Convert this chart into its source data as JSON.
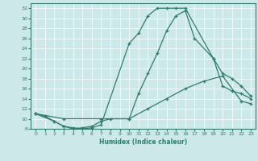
{
  "xlabel": "Humidex (Indice chaleur)",
  "xlim": [
    -0.5,
    23.5
  ],
  "ylim": [
    8,
    33
  ],
  "yticks": [
    8,
    10,
    12,
    14,
    16,
    18,
    20,
    22,
    24,
    26,
    28,
    30,
    32
  ],
  "xticks": [
    0,
    1,
    2,
    3,
    4,
    5,
    6,
    7,
    8,
    9,
    10,
    11,
    12,
    13,
    14,
    15,
    16,
    17,
    18,
    19,
    20,
    21,
    22,
    23
  ],
  "background_color": "#cce8e8",
  "line_color": "#2e7d6e",
  "lines": [
    {
      "x": [
        0,
        1,
        2,
        3,
        4,
        5,
        6,
        7,
        10,
        11,
        12,
        13,
        14,
        15,
        16,
        19,
        20,
        21,
        22,
        23
      ],
      "y": [
        11,
        10.5,
        9.5,
        8.5,
        8.2,
        8.0,
        8.2,
        8.8,
        25,
        27,
        30.5,
        32,
        32,
        32,
        32,
        22,
        16.5,
        15.5,
        15,
        14
      ]
    },
    {
      "x": [
        0,
        2,
        3,
        4,
        5,
        6,
        7,
        8,
        10,
        11,
        12,
        13,
        14,
        15,
        16,
        17,
        19,
        20,
        21,
        22,
        23
      ],
      "y": [
        11,
        9.5,
        8.5,
        8.0,
        8.2,
        8.5,
        9.5,
        10,
        10,
        15,
        19,
        23,
        27.5,
        30.5,
        31.5,
        26,
        22,
        19,
        18,
        16.5,
        14.5
      ]
    },
    {
      "x": [
        0,
        3,
        7,
        10,
        12,
        14,
        16,
        18,
        20,
        22,
        23
      ],
      "y": [
        11,
        10,
        10,
        10,
        12,
        14,
        16,
        17.5,
        18.5,
        13.5,
        13
      ]
    }
  ]
}
